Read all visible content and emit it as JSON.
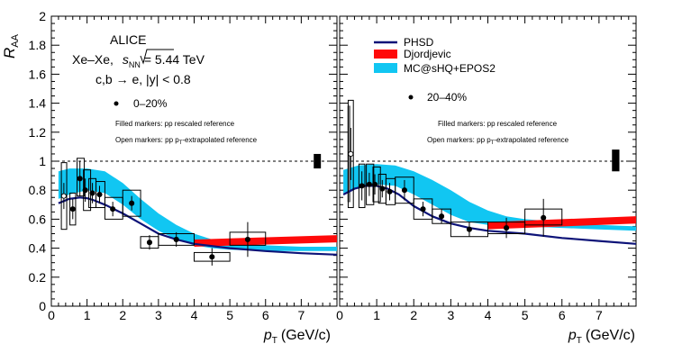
{
  "figure": {
    "experiment": "ALICE",
    "system_label": "Xe–Xe,",
    "energy_sqrt": "s",
    "energy_sub": "NN",
    "energy_value": "= 5.44 TeV",
    "process": "c,b → e, |y| < 0.8",
    "note_filled": "Filled markers: pp rescaled reference",
    "note_open_pre": "Open markers: pp p",
    "note_open_sub": "T",
    "note_open_post": "-extrapolated reference",
    "ylabel_main": "R",
    "ylabel_sub": "AA",
    "xlabel_main": "p",
    "xlabel_sub": "T",
    "xlabel_unit": "(GeV/c)"
  },
  "colors": {
    "phsd": "#0d1378",
    "djordjevic": "#ff0a0a",
    "mcsHQ": "#11c6f2",
    "data": "#000000"
  },
  "chart_data": [
    {
      "type": "scatter",
      "panel": "left",
      "centrality": "0–20%",
      "xlim": [
        0,
        8
      ],
      "ylim": [
        0,
        2
      ],
      "yticks": [
        "0",
        "0.2",
        "0.4",
        "0.6",
        "0.8",
        "1",
        "1.2",
        "1.4",
        "1.6",
        "1.8",
        "2"
      ],
      "xticks": [
        "0",
        "1",
        "2",
        "3",
        "4",
        "5",
        "6",
        "7"
      ],
      "reference_line": 1,
      "norm_uncertainty": [
        0.95,
        1.05
      ],
      "data_filled": [
        {
          "x": 0.6,
          "y": 0.67,
          "ey": 0.07,
          "sys_x": [
            0.52,
            0.68
          ],
          "sys_y": [
            0.56,
            0.78
          ]
        },
        {
          "x": 0.8,
          "y": 0.88,
          "ey": 0.12,
          "sys_x": [
            0.72,
            0.92
          ],
          "sys_y": [
            0.76,
            1.02
          ]
        },
        {
          "x": 0.95,
          "y": 0.8,
          "ey": 0.08,
          "sys_x": [
            0.9,
            1.1
          ],
          "sys_y": [
            0.66,
            0.94
          ]
        },
        {
          "x": 1.15,
          "y": 0.78,
          "ey": 0.07,
          "sys_x": [
            1.05,
            1.25
          ],
          "sys_y": [
            0.68,
            0.88
          ]
        },
        {
          "x": 1.35,
          "y": 0.77,
          "ey": 0.06,
          "sys_x": [
            1.25,
            1.5
          ],
          "sys_y": [
            0.68,
            0.86
          ]
        },
        {
          "x": 1.72,
          "y": 0.67,
          "ey": 0.05,
          "sys_x": [
            1.5,
            2.0
          ],
          "sys_y": [
            0.6,
            0.75
          ]
        },
        {
          "x": 2.25,
          "y": 0.71,
          "ey": 0.05,
          "sys_x": [
            2.0,
            2.5
          ],
          "sys_y": [
            0.62,
            0.8
          ]
        },
        {
          "x": 2.75,
          "y": 0.44,
          "ey": 0.05,
          "sys_x": [
            2.5,
            3.0
          ],
          "sys_y": [
            0.4,
            0.48
          ]
        },
        {
          "x": 3.5,
          "y": 0.46,
          "ey": 0.05,
          "sys_x": [
            3.0,
            4.0
          ],
          "sys_y": [
            0.42,
            0.5
          ]
        },
        {
          "x": 4.5,
          "y": 0.34,
          "ey": 0.06,
          "sys_x": [
            4.0,
            5.0
          ],
          "sys_y": [
            0.31,
            0.37
          ]
        },
        {
          "x": 5.5,
          "y": 0.46,
          "ey": 0.12,
          "sys_x": [
            5.0,
            6.0
          ],
          "sys_y": [
            0.42,
            0.51
          ]
        }
      ],
      "data_open": [
        {
          "x": 0.35,
          "y": 0.76,
          "ey": 0.09,
          "sys_x": [
            0.28,
            0.43
          ],
          "sys_y": [
            0.53,
            0.99
          ]
        }
      ],
      "phsd": {
        "x": [
          0.2,
          0.5,
          0.8,
          1.0,
          1.2,
          1.5,
          2.0,
          2.5,
          3.0,
          3.5,
          4.0,
          5.0,
          6.0,
          7.0,
          8.0
        ],
        "y": [
          0.71,
          0.74,
          0.75,
          0.745,
          0.73,
          0.7,
          0.64,
          0.57,
          0.5,
          0.46,
          0.43,
          0.4,
          0.38,
          0.365,
          0.355
        ]
      },
      "djordjevic": {
        "x": [
          4.0,
          8.0
        ],
        "y_low": [
          0.41,
          0.44
        ],
        "y_high": [
          0.46,
          0.49
        ]
      },
      "mcsHQ": {
        "x": [
          0.2,
          0.5,
          1.0,
          1.5,
          2.0,
          2.5,
          3.0,
          3.5,
          4.0,
          4.5,
          5.0,
          6.0,
          7.0,
          8.0
        ],
        "y_low": [
          0.74,
          0.77,
          0.8,
          0.78,
          0.7,
          0.6,
          0.52,
          0.46,
          0.42,
          0.4,
          0.39,
          0.38,
          0.38,
          0.38
        ],
        "y_high": [
          0.93,
          0.95,
          0.95,
          0.93,
          0.85,
          0.74,
          0.64,
          0.56,
          0.5,
          0.46,
          0.44,
          0.42,
          0.41,
          0.41
        ]
      }
    },
    {
      "type": "scatter",
      "panel": "right",
      "centrality": "20–40%",
      "xlim": [
        0,
        8
      ],
      "ylim": [
        0,
        2
      ],
      "xticks": [
        "0",
        "1",
        "2",
        "3",
        "4",
        "5",
        "6",
        "7"
      ],
      "reference_line": 1,
      "norm_uncertainty": [
        0.93,
        1.08
      ],
      "data_filled": [
        {
          "x": 0.6,
          "y": 0.83,
          "ey": 0.1,
          "sys_x": [
            0.52,
            0.68
          ],
          "sys_y": [
            0.68,
            0.98
          ]
        },
        {
          "x": 0.8,
          "y": 0.84,
          "ey": 0.08,
          "sys_x": [
            0.72,
            0.92
          ],
          "sys_y": [
            0.7,
            0.98
          ]
        },
        {
          "x": 0.95,
          "y": 0.84,
          "ey": 0.07,
          "sys_x": [
            0.9,
            1.1
          ],
          "sys_y": [
            0.72,
            0.96
          ]
        },
        {
          "x": 1.15,
          "y": 0.81,
          "ey": 0.06,
          "sys_x": [
            1.05,
            1.25
          ],
          "sys_y": [
            0.71,
            0.91
          ]
        },
        {
          "x": 1.35,
          "y": 0.79,
          "ey": 0.06,
          "sys_x": [
            1.25,
            1.5
          ],
          "sys_y": [
            0.7,
            0.88
          ]
        },
        {
          "x": 1.75,
          "y": 0.8,
          "ey": 0.07,
          "sys_x": [
            1.5,
            2.0
          ],
          "sys_y": [
            0.71,
            0.89
          ]
        },
        {
          "x": 2.25,
          "y": 0.67,
          "ey": 0.05,
          "sys_x": [
            2.0,
            2.5
          ],
          "sys_y": [
            0.6,
            0.74
          ]
        },
        {
          "x": 2.75,
          "y": 0.62,
          "ey": 0.05,
          "sys_x": [
            2.5,
            3.0
          ],
          "sys_y": [
            0.57,
            0.67
          ]
        },
        {
          "x": 3.5,
          "y": 0.53,
          "ey": 0.05,
          "sys_x": [
            3.0,
            4.0
          ],
          "sys_y": [
            0.48,
            0.58
          ]
        },
        {
          "x": 4.5,
          "y": 0.54,
          "ey": 0.07,
          "sys_x": [
            4.0,
            5.0
          ],
          "sys_y": [
            0.5,
            0.58
          ]
        },
        {
          "x": 5.5,
          "y": 0.61,
          "ey": 0.13,
          "sys_x": [
            5.0,
            6.0
          ],
          "sys_y": [
            0.56,
            0.67
          ]
        }
      ],
      "data_open": [
        {
          "x": 0.3,
          "y": 1.05,
          "ey": 0.18,
          "sys_x": [
            0.23,
            0.37
          ],
          "sys_y": [
            0.68,
            1.42
          ]
        }
      ],
      "open_norm_bar": {
        "x": [
          0.22,
          0.28
        ],
        "y": [
          0.72,
          1.38
        ]
      },
      "phsd": {
        "x": [
          0.1,
          0.4,
          0.7,
          1.0,
          1.3,
          1.6,
          2.0,
          2.5,
          3.0,
          3.5,
          4.0,
          5.0,
          6.0,
          7.0,
          8.0
        ],
        "y": [
          0.77,
          0.81,
          0.83,
          0.83,
          0.81,
          0.77,
          0.69,
          0.62,
          0.57,
          0.54,
          0.52,
          0.5,
          0.47,
          0.45,
          0.43
        ]
      },
      "djordjevic": {
        "x": [
          4.0,
          8.0
        ],
        "y_low": [
          0.53,
          0.57
        ],
        "y_high": [
          0.58,
          0.62
        ]
      },
      "mcsHQ": {
        "x": [
          0.1,
          0.5,
          1.0,
          1.5,
          2.0,
          2.5,
          3.0,
          3.5,
          4.0,
          4.5,
          5.0,
          6.0,
          7.0,
          8.0
        ],
        "y_low": [
          0.78,
          0.82,
          0.84,
          0.83,
          0.77,
          0.7,
          0.63,
          0.58,
          0.56,
          0.55,
          0.55,
          0.54,
          0.53,
          0.52
        ],
        "y_high": [
          0.94,
          0.97,
          0.98,
          0.97,
          0.93,
          0.87,
          0.8,
          0.72,
          0.66,
          0.62,
          0.6,
          0.58,
          0.56,
          0.55
        ]
      }
    }
  ],
  "legend": {
    "phsd": "PHSD",
    "djordjevic": "Djordjevic",
    "mcsHQ": "MC@sHQ+EPOS2"
  }
}
